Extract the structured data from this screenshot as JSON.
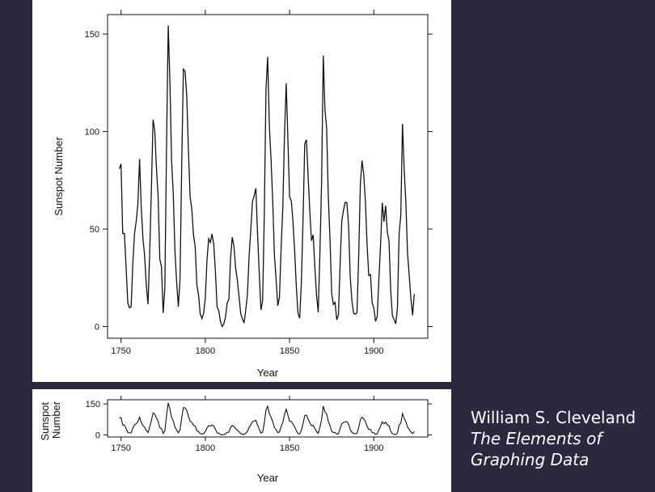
{
  "caption": {
    "author": "William S. Cleveland",
    "book_line1": "The Elements of",
    "book_line2": "Graphing Data"
  },
  "chart_data": [
    {
      "type": "line",
      "title": "",
      "xlabel": "Year",
      "ylabel": "Sunspot Number",
      "xlim": [
        1742,
        1932
      ],
      "ylim": [
        -6,
        160
      ],
      "xticks": [
        1750,
        1800,
        1850,
        1900
      ],
      "yticks": [
        0,
        50,
        100,
        150
      ],
      "grid": false,
      "x": [
        1749,
        1750,
        1751,
        1752,
        1753,
        1754,
        1755,
        1756,
        1757,
        1758,
        1759,
        1760,
        1761,
        1762,
        1763,
        1764,
        1765,
        1766,
        1767,
        1768,
        1769,
        1770,
        1771,
        1772,
        1773,
        1774,
        1775,
        1776,
        1777,
        1778,
        1779,
        1780,
        1781,
        1782,
        1783,
        1784,
        1785,
        1786,
        1787,
        1788,
        1789,
        1790,
        1791,
        1792,
        1793,
        1794,
        1795,
        1796,
        1797,
        1798,
        1799,
        1800,
        1801,
        1802,
        1803,
        1804,
        1805,
        1806,
        1807,
        1808,
        1809,
        1810,
        1811,
        1812,
        1813,
        1814,
        1815,
        1816,
        1817,
        1818,
        1819,
        1820,
        1821,
        1822,
        1823,
        1824,
        1825,
        1826,
        1827,
        1828,
        1829,
        1830,
        1831,
        1832,
        1833,
        1834,
        1835,
        1836,
        1837,
        1838,
        1839,
        1840,
        1841,
        1842,
        1843,
        1844,
        1845,
        1846,
        1847,
        1848,
        1849,
        1850,
        1851,
        1852,
        1853,
        1854,
        1855,
        1856,
        1857,
        1858,
        1859,
        1860,
        1861,
        1862,
        1863,
        1864,
        1865,
        1866,
        1867,
        1868,
        1869,
        1870,
        1871,
        1872,
        1873,
        1874,
        1875,
        1876,
        1877,
        1878,
        1879,
        1880,
        1881,
        1882,
        1883,
        1884,
        1885,
        1886,
        1887,
        1888,
        1889,
        1890,
        1891,
        1892,
        1893,
        1894,
        1895,
        1896,
        1897,
        1898,
        1899,
        1900,
        1901,
        1902,
        1903,
        1904,
        1905,
        1906,
        1907,
        1908,
        1909,
        1910,
        1911,
        1912,
        1913,
        1914,
        1915,
        1916,
        1917,
        1918,
        1919,
        1920,
        1921,
        1922,
        1923,
        1924
      ],
      "y": [
        80.9,
        83.4,
        47.7,
        47.8,
        30.7,
        12.2,
        9.6,
        10.2,
        32.4,
        47.6,
        54.0,
        62.9,
        85.9,
        61.2,
        45.1,
        36.4,
        20.9,
        11.4,
        37.8,
        69.8,
        106.1,
        100.8,
        81.6,
        66.5,
        34.8,
        30.6,
        7.0,
        19.8,
        92.5,
        154.4,
        125.9,
        84.8,
        68.1,
        38.5,
        22.8,
        10.2,
        24.1,
        82.9,
        132.0,
        130.9,
        118.1,
        89.9,
        66.6,
        60.0,
        46.9,
        41.0,
        21.3,
        16.0,
        6.4,
        4.1,
        6.8,
        14.5,
        34.0,
        45.0,
        43.1,
        47.5,
        42.2,
        28.1,
        10.1,
        8.1,
        2.5,
        0.0,
        1.4,
        5.0,
        12.2,
        13.9,
        35.4,
        45.8,
        41.1,
        30.1,
        23.9,
        15.6,
        6.6,
        4.0,
        1.8,
        8.5,
        16.6,
        36.3,
        49.6,
        64.2,
        67.0,
        70.9,
        47.8,
        27.5,
        8.5,
        13.2,
        56.9,
        121.5,
        138.3,
        103.2,
        85.7,
        64.6,
        36.7,
        24.2,
        10.7,
        15.0,
        40.1,
        61.5,
        98.5,
        124.7,
        96.3,
        66.6,
        64.5,
        54.1,
        39.0,
        20.6,
        6.7,
        4.3,
        22.7,
        54.8,
        93.8,
        95.8,
        77.2,
        59.1,
        44.0,
        47.0,
        30.5,
        16.3,
        7.3,
        37.6,
        74.0,
        139.0,
        111.2,
        101.6,
        66.2,
        44.7,
        17.0,
        11.3,
        12.4,
        3.4,
        6.0,
        32.3,
        54.3,
        59.7,
        63.7,
        63.5,
        52.2,
        25.4,
        13.1,
        6.8,
        6.3,
        7.1,
        35.6,
        73.0,
        85.1,
        78.0,
        64.0,
        41.8,
        26.2,
        26.7,
        12.1,
        9.5,
        2.7,
        5.0,
        24.4,
        42.0,
        63.5,
        53.8,
        62.0,
        48.5,
        43.9,
        18.6,
        5.7,
        3.6,
        1.4,
        9.6,
        47.4,
        57.1,
        103.9,
        80.6,
        63.6,
        37.6,
        26.1,
        14.2,
        5.8,
        16.7
      ]
    },
    {
      "type": "line",
      "title": "",
      "xlabel": "Year",
      "ylabel": "Sunspot Number",
      "xlim": [
        1742,
        1932
      ],
      "ylim": [
        -10,
        170
      ],
      "xticks": [
        1750,
        1800,
        1850,
        1900
      ],
      "yticks": [
        0,
        150
      ],
      "grid": false,
      "series_ref": "same data as chart 1, aspect ratio banked to 45 degrees"
    }
  ]
}
